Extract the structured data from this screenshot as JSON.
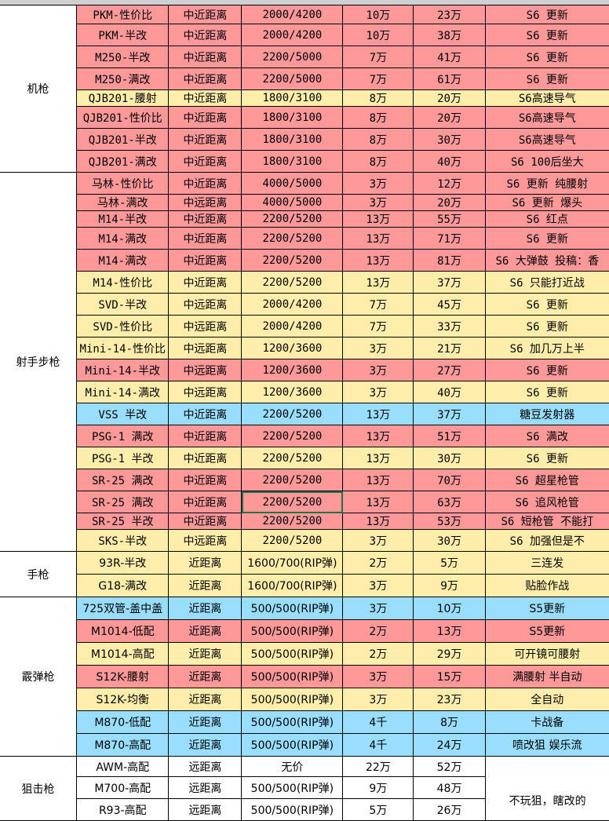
{
  "colors": {
    "red": "#FF9999",
    "yellow": "#FFEDAB",
    "blue": "#99DDFF",
    "white": "#FFFFFF",
    "selection": "#217346"
  },
  "selected_cell": {
    "row": 23,
    "col": 3
  },
  "groups": [
    {
      "category": "机枪",
      "rows": [
        {
          "name": "PKM-性价比",
          "range": "中近距离",
          "ammo": "2000/4200",
          "c4": "10万",
          "price": "23万",
          "note": "S6 更新",
          "color": "red"
        },
        {
          "name": "PKM-半改",
          "range": "中近距离",
          "ammo": "2000/4200",
          "c4": "10万",
          "price": "38万",
          "note": "S6 更新",
          "color": "red"
        },
        {
          "name": "M250-半改",
          "range": "中近距离",
          "ammo": "2200/5000",
          "c4": "7万",
          "price": "41万",
          "note": "S6 更新",
          "color": "red"
        },
        {
          "name": "M250-满改",
          "range": "中近距离",
          "ammo": "2200/5000",
          "c4": "7万",
          "price": "61万",
          "note": "S6 更新",
          "color": "red"
        },
        {
          "name": "QJB201-腰射",
          "range": "中近距离",
          "ammo": "1800/3100",
          "c4": "8万",
          "price": "20万",
          "note": "S6高速导气",
          "color": "yellow"
        },
        {
          "name": "QJB201-性价比",
          "range": "中近距离",
          "ammo": "1800/3100",
          "c4": "8万",
          "price": "20万",
          "note": "S6高速导气",
          "color": "red"
        },
        {
          "name": "QJB201-半改",
          "range": "中近距离",
          "ammo": "1800/3100",
          "c4": "8万",
          "price": "30万",
          "note": "S6高速导气",
          "color": "red"
        },
        {
          "name": "QJB201-满改",
          "range": "中近距离",
          "ammo": "1800/3100",
          "c4": "8万",
          "price": "40万",
          "note": "S6 100后坐大",
          "color": "red"
        }
      ]
    },
    {
      "category": "射手步枪",
      "rows": [
        {
          "name": "马林-性价比",
          "range": "中近距离",
          "ammo": "4000/5000",
          "c4": "3万",
          "price": "12万",
          "note": "S6 更新 纯腰射",
          "color": "red"
        },
        {
          "name": "马林-满改",
          "range": "中远距离",
          "ammo": "4000/5000",
          "c4": "3万",
          "price": "20万",
          "note": "S6 更新 爆头",
          "color": "red"
        },
        {
          "name": "M14-半改",
          "range": "中近距离",
          "ammo": "2200/5200",
          "c4": "13万",
          "price": "55万",
          "note": "S6 红点",
          "color": "red"
        },
        {
          "name": "M14-满改",
          "range": "中近距离",
          "ammo": "2200/5200",
          "c4": "13万",
          "price": "71万",
          "note": "S6 更新",
          "color": "red"
        },
        {
          "name": "M14-满改",
          "range": "中近距离",
          "ammo": "2200/5200",
          "c4": "13万",
          "price": "81万",
          "note": "S6 大弹鼓  投稿：香",
          "color": "red"
        },
        {
          "name": "M14-性价比",
          "range": "中近距离",
          "ammo": "2200/5200",
          "c4": "13万",
          "price": "37万",
          "note": "S6 只能打近战",
          "color": "yellow"
        },
        {
          "name": "SVD-半改",
          "range": "中远距离",
          "ammo": "2000/4200",
          "c4": "7万",
          "price": "45万",
          "note": "S6 更新",
          "color": "yellow"
        },
        {
          "name": "SVD-性价比",
          "range": "中远距离",
          "ammo": "2000/4200",
          "c4": "7万",
          "price": "33万",
          "note": "S6 更新",
          "color": "yellow"
        },
        {
          "name": "Mini-14-性价比",
          "range": "中远距离",
          "ammo": "1200/3600",
          "c4": "3万",
          "price": "21万",
          "note": "S6 加几万上半",
          "color": "yellow"
        },
        {
          "name": "Mini-14-半改",
          "range": "中远距离",
          "ammo": "1200/3600",
          "c4": "3万",
          "price": "27万",
          "note": "S6 更新",
          "color": "red"
        },
        {
          "name": "Mini-14-满改",
          "range": "中远距离",
          "ammo": "1200/3600",
          "c4": "3万",
          "price": "40万",
          "note": "S6 更新",
          "color": "yellow"
        },
        {
          "name": "VSS 半改",
          "range": "中近距离",
          "ammo": "2200/5200",
          "c4": "13万",
          "price": "37万",
          "note": "糖豆发射器",
          "color": "blue"
        },
        {
          "name": "PSG-1 满改",
          "range": "中近距离",
          "ammo": "2200/5200",
          "c4": "13万",
          "price": "51万",
          "note": "S6 满改",
          "color": "red"
        },
        {
          "name": "PSG-1 半改",
          "range": "中近距离",
          "ammo": "2200/5200",
          "c4": "13万",
          "price": "30万",
          "note": "S6 更新",
          "color": "yellow"
        },
        {
          "name": "SR-25 满改",
          "range": "中近距离",
          "ammo": "2200/5200",
          "c4": "13万",
          "price": "70万",
          "note": "S6 超星枪管",
          "color": "red"
        },
        {
          "name": "SR-25 满改",
          "range": "中近距离",
          "ammo": "2200/5200",
          "c4": "13万",
          "price": "63万",
          "note": "S6 追风枪管",
          "color": "red"
        },
        {
          "name": "SR-25 半改",
          "range": "中近距离",
          "ammo": "2200/5200",
          "c4": "13万",
          "price": "53万",
          "note": "S6 短枪管 不能打",
          "color": "red"
        },
        {
          "name": "SKS-半改",
          "range": "中远距离",
          "ammo": "2200/5200",
          "c4": "3万",
          "price": "30万",
          "note": "S6 加强但是不",
          "color": "yellow"
        }
      ]
    },
    {
      "category": "手枪",
      "rows": [
        {
          "name": "93R-半改",
          "range": "近距离",
          "ammo": "1600/700(RIP弹)",
          "c4": "2万",
          "price": "5万",
          "note": "三连发",
          "color": "yellow"
        },
        {
          "name": "G18-满改",
          "range": "近距离",
          "ammo": "1600/700(RIP弹)",
          "c4": "3万",
          "price": "9万",
          "note": "贴脸作战",
          "color": "yellow"
        }
      ]
    },
    {
      "category": "霰弹枪",
      "rows": [
        {
          "name": "725双管-盖中盖",
          "range": "近距离",
          "ammo": "500/500(RIP弹)",
          "c4": "3万",
          "price": "10万",
          "note": "S5更新",
          "color": "blue"
        },
        {
          "name": "M1014-低配",
          "range": "近距离",
          "ammo": "500/500(RIP弹)",
          "c4": "2万",
          "price": "13万",
          "note": "S5更新",
          "color": "red"
        },
        {
          "name": "M1014-高配",
          "range": "近距离",
          "ammo": "500/500(RIP弹)",
          "c4": "2万",
          "price": "29万",
          "note": "可开镜可腰射",
          "color": "yellow"
        },
        {
          "name": "S12K-腰射",
          "range": "近距离",
          "ammo": "500/500(RIP弹)",
          "c4": "3万",
          "price": "15万",
          "note": "满腰射 半自动",
          "color": "red"
        },
        {
          "name": "S12K-均衡",
          "range": "近距离",
          "ammo": "500/500(RIP弹)",
          "c4": "3万",
          "price": "23万",
          "note": "全自动",
          "color": "yellow"
        },
        {
          "name": "M870-低配",
          "range": "近距离",
          "ammo": "500/500(RIP弹)",
          "c4": "4千",
          "price": "8万",
          "note": "卡战备",
          "color": "blue"
        },
        {
          "name": "M870-高配",
          "range": "近距离",
          "ammo": "500/500(RIP弹)",
          "c4": "4千",
          "price": "24万",
          "note": "喷改狙 娱乐流",
          "color": "blue"
        }
      ]
    },
    {
      "category": "狙击枪",
      "merged_note": "不玩狙，瞎改的",
      "rows": [
        {
          "name": "AWM-高配",
          "range": "远距离",
          "ammo": "无价",
          "c4": "22万",
          "price": "52万",
          "color": "white"
        },
        {
          "name": "M700-高配",
          "range": "远距离",
          "ammo": "500/500(RIP弹)",
          "c4": "9万",
          "price": "48万",
          "color": "white"
        },
        {
          "name": "R93-高配",
          "range": "远距离",
          "ammo": "500/500(RIP弹)",
          "c4": "5万",
          "price": "26万",
          "color": "white"
        }
      ]
    }
  ]
}
